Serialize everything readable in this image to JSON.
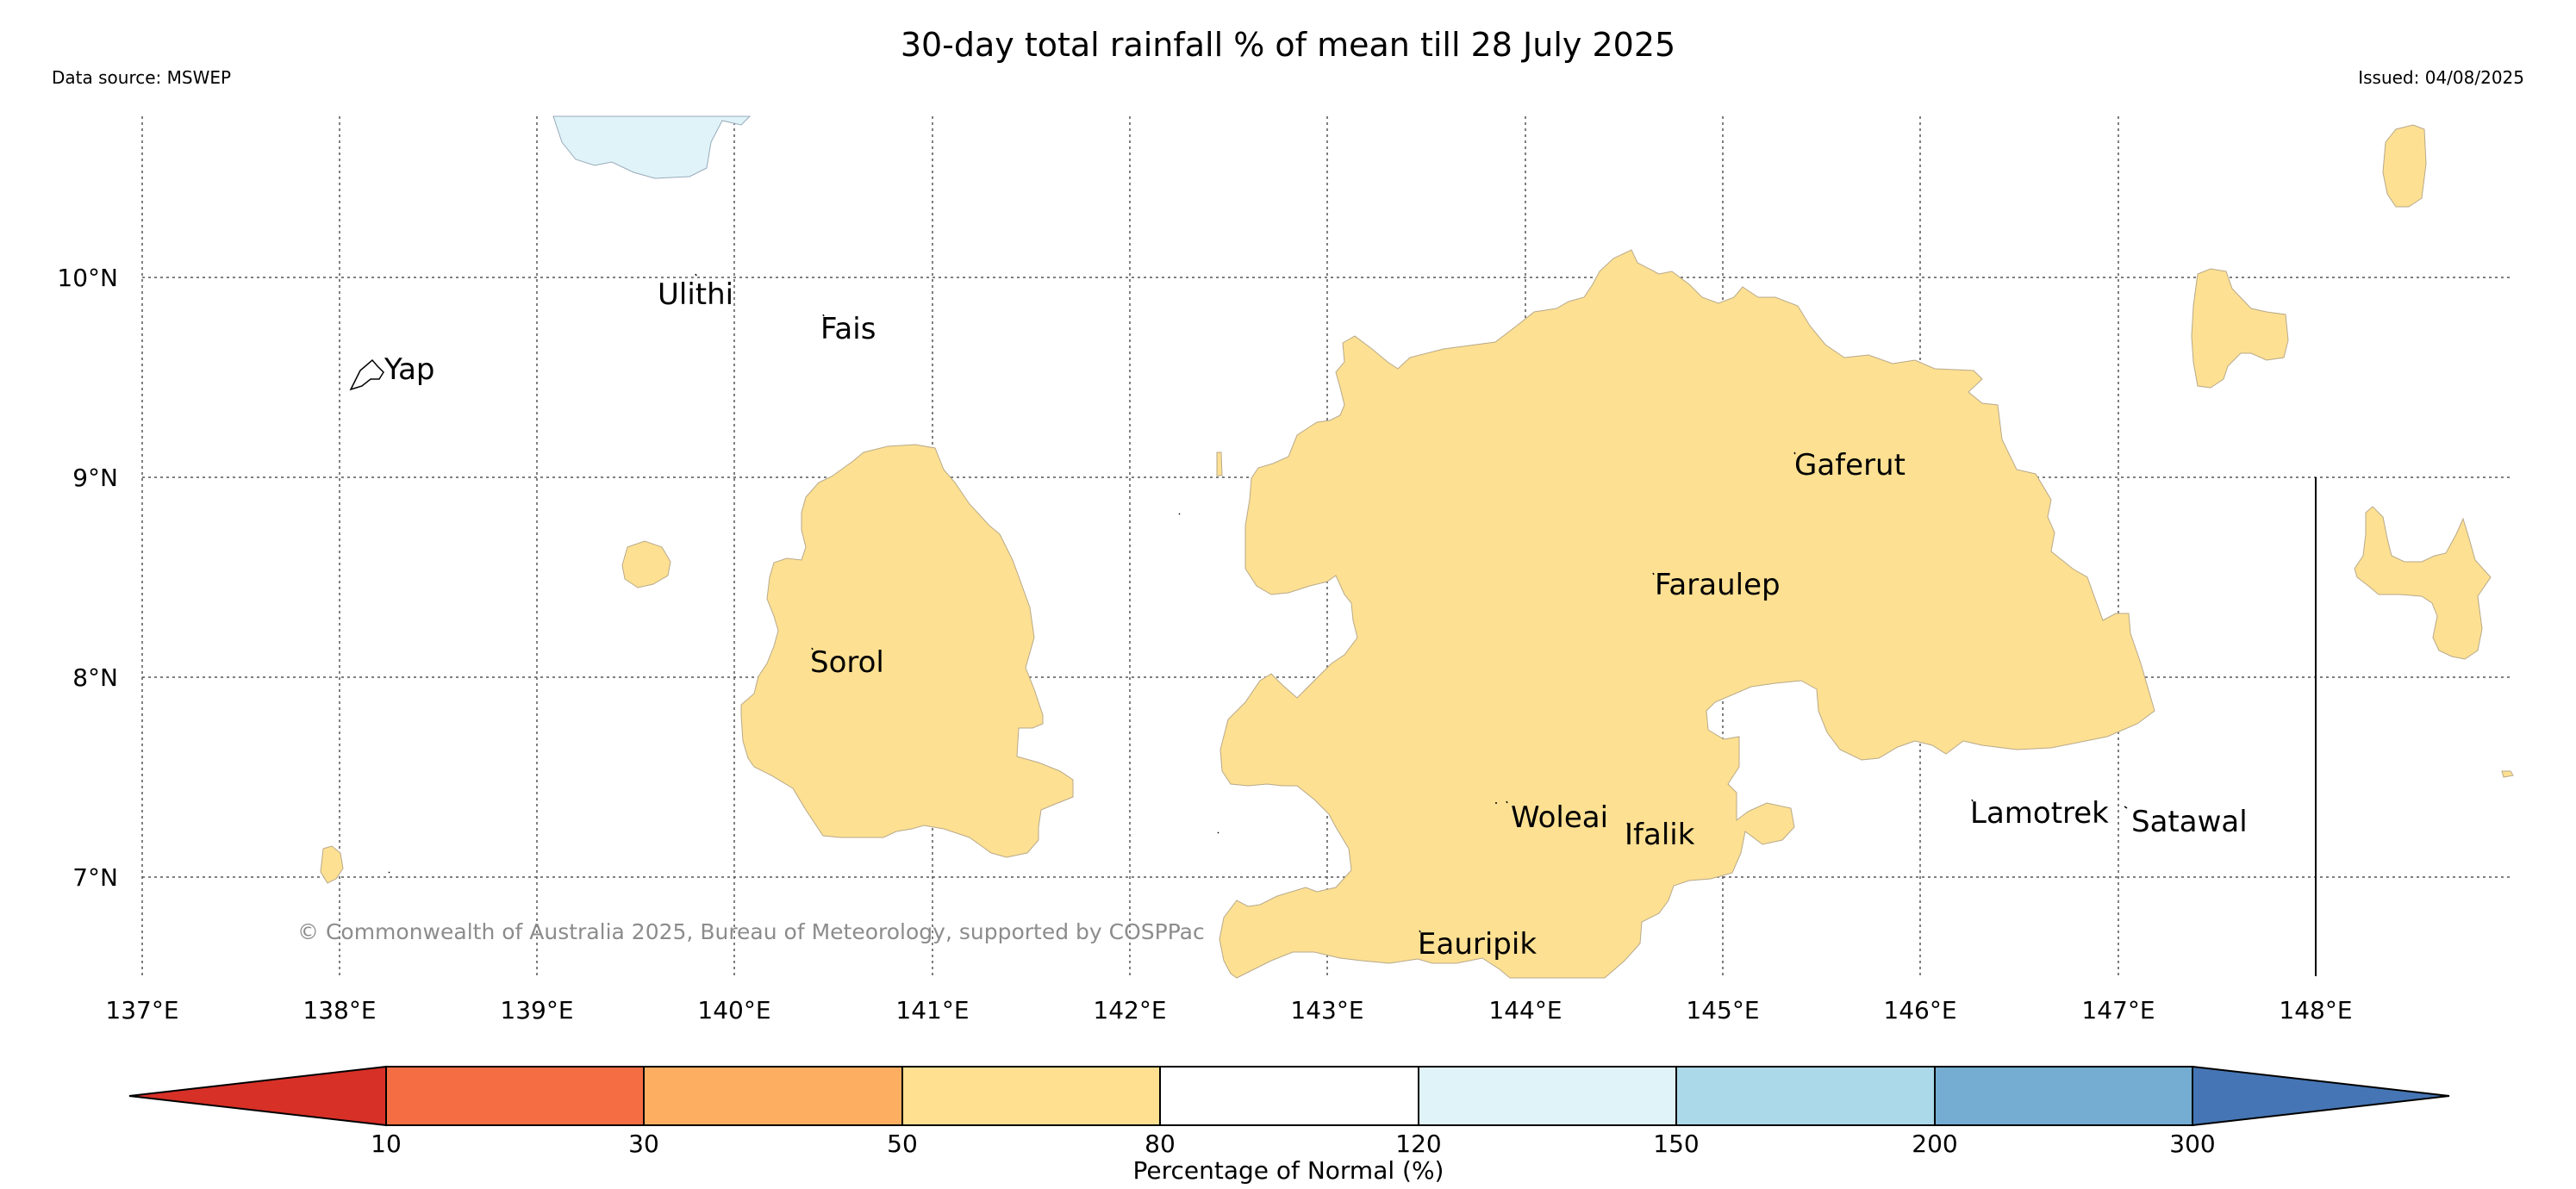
{
  "header": {
    "title": "30-day total rainfall % of mean till 28 July 2025",
    "data_source": "Data source: MSWEP",
    "issued": "Issued: 04/08/2025"
  },
  "map": {
    "lat_labels": [
      "10°N",
      "9°N",
      "8°N",
      "7°N"
    ],
    "lon_labels": [
      "137°E",
      "138°E",
      "139°E",
      "140°E",
      "141°E",
      "142°E",
      "143°E",
      "144°E",
      "145°E",
      "146°E",
      "147°E",
      "148°E"
    ],
    "places": [
      "Ulithi",
      "Fais",
      "Yap",
      "Gaferut",
      "Faraulep",
      "Sorol",
      "Woleai",
      "Ifalik",
      "Lamotrek",
      "Satawal",
      "Eauripik"
    ],
    "copyright": "© Commonwealth of Australia 2025, Bureau of Meteorology, supported by COSPPac",
    "fill_colors": {
      "50-80": "#fde092",
      "120-150": "#e0f3f8"
    }
  },
  "colorbar": {
    "label": "Percentage of Normal (%)",
    "ticks": [
      "10",
      "30",
      "50",
      "80",
      "120",
      "150",
      "200",
      "300"
    ],
    "colors": [
      "#d73027",
      "#f46d43",
      "#fdae61",
      "#fee090",
      "#ffffff",
      "#e0f3f8",
      "#abd9e9",
      "#74add1",
      "#4575b4"
    ]
  }
}
